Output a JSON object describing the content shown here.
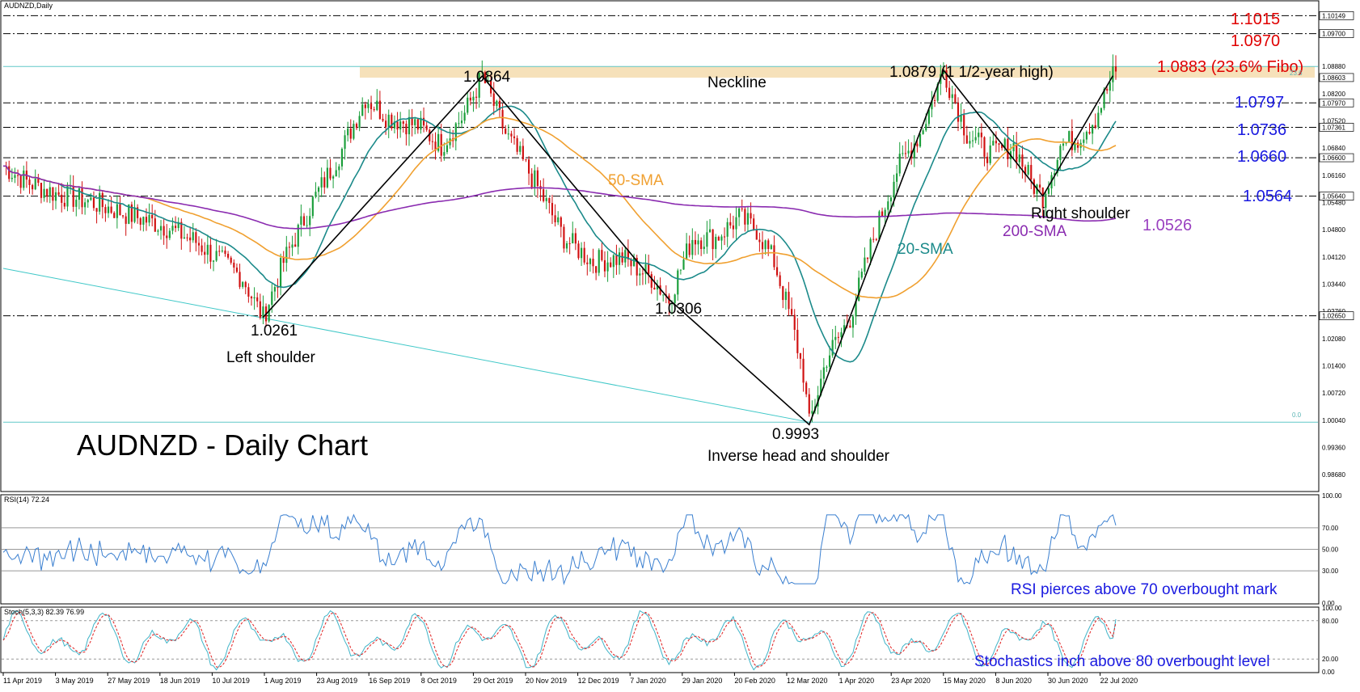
{
  "header": {
    "symbol_label": "AUDNZD,Daily",
    "rsi_label": "RSI(14) 72.24",
    "stoch_label": "Stoch(5,3,3) 82.39 76.99"
  },
  "colors": {
    "background": "#ffffff",
    "bull_candle": "#1a9e3a",
    "bear_candle": "#d01010",
    "sma20": "#1b8a8a",
    "sma50": "#f0a030",
    "sma200": "#8a2bb0",
    "neckline_zone": "#f5deb3",
    "resistance_text": "#e00000",
    "support_text": "#1a1ae0",
    "trendline": "#40c8c8",
    "indicator_line": "#3a7fd0",
    "stoch_signal": "#e02020"
  },
  "chart_data": [
    {
      "type": "candlestick",
      "title": "AUDNZD - Daily Chart",
      "symbol": "AUDNZD",
      "timeframe": "Daily",
      "x_tick_labels": [
        "11 Apr 2019",
        "3 May 2019",
        "27 May 2019",
        "18 Jun 2019",
        "10 Jul 2019",
        "1 Aug 2019",
        "23 Aug 2019",
        "16 Sep 2019",
        "8 Oct 2019",
        "29 Oct 2019",
        "20 Nov 2019",
        "12 Dec 2019",
        "7 Jan 2020",
        "29 Jan 2020",
        "20 Feb 2020",
        "12 Mar 2020",
        "1 Apr 2020",
        "23 Apr 2020",
        "15 May 2020",
        "8 Jun 2020",
        "30 Jun 2020",
        "22 Jul 2020"
      ],
      "y_tick_labels": [
        "1.10149",
        "1.09700",
        "1.08880",
        "1.08603",
        "1.08200",
        "1.07970",
        "1.07520",
        "1.07361",
        "1.06840",
        "1.06600",
        "1.06160",
        "1.05640",
        "1.05480",
        "1.04800",
        "1.04120",
        "1.03440",
        "1.02760",
        "1.02650",
        "1.02080",
        "1.01400",
        "1.00720",
        "1.00040",
        "0.99360",
        "0.98680"
      ],
      "ylim": [
        0.9828,
        1.105
      ],
      "price_path": [
        [
          0,
          1.064
        ],
        [
          8,
          1.06
        ],
        [
          18,
          1.057
        ],
        [
          30,
          1.055
        ],
        [
          42,
          1.052
        ],
        [
          55,
          1.049
        ],
        [
          66,
          1.045
        ],
        [
          75,
          1.04
        ],
        [
          82,
          1.036
        ],
        [
          86,
          1.03
        ],
        [
          89,
          1.0261
        ],
        [
          96,
          1.04
        ],
        [
          106,
          1.055
        ],
        [
          116,
          1.068
        ],
        [
          124,
          1.081
        ],
        [
          132,
          1.076
        ],
        [
          142,
          1.074
        ],
        [
          150,
          1.069
        ],
        [
          158,
          1.077
        ],
        [
          164,
          1.0864
        ],
        [
          172,
          1.072
        ],
        [
          182,
          1.06
        ],
        [
          192,
          1.046
        ],
        [
          202,
          1.04
        ],
        [
          212,
          1.041
        ],
        [
          222,
          1.036
        ],
        [
          228,
          1.0306
        ],
        [
          236,
          1.046
        ],
        [
          244,
          1.046
        ],
        [
          252,
          1.051
        ],
        [
          258,
          1.048
        ],
        [
          264,
          1.04
        ],
        [
          270,
          1.025
        ],
        [
          274,
          1.012
        ],
        [
          276,
          0.9993
        ],
        [
          282,
          1.016
        ],
        [
          290,
          1.026
        ],
        [
          298,
          1.046
        ],
        [
          306,
          1.063
        ],
        [
          314,
          1.072
        ],
        [
          322,
          1.0879
        ],
        [
          330,
          1.072
        ],
        [
          338,
          1.067
        ],
        [
          346,
          1.069
        ],
        [
          352,
          1.06
        ],
        [
          356,
          1.0564
        ],
        [
          362,
          1.069
        ],
        [
          368,
          1.071
        ],
        [
          374,
          1.076
        ],
        [
          380,
          1.0865
        ]
      ],
      "moving_averages": [
        {
          "name": "20-SMA",
          "label": "20-SMA"
        },
        {
          "name": "50-SMA",
          "label": "50-SMA"
        },
        {
          "name": "200-SMA",
          "label": "200-SMA"
        }
      ],
      "horizontal_levels": [
        1.1015,
        1.097,
        1.0797,
        1.0736,
        1.066,
        1.0564,
        1.0265
      ],
      "neckline_zone": [
        1.086,
        1.0888
      ],
      "annotations": {
        "resistance_1": "1.1015",
        "resistance_2": "1.0970",
        "fibo": "1.0883 (23.6% Fibo)",
        "support_1": "1.0797",
        "support_2": "1.0736",
        "support_3": "1.0660",
        "support_4": "1.0564",
        "sma200_value": "1.0526",
        "head_high_left": "1.0864",
        "high_right": "1.0879 (1 1/2-year high)",
        "neckline": "Neckline",
        "left_shoulder_value": "1.0261",
        "left_shoulder": "Left shoulder",
        "low_mid": "1.0306",
        "head_value": "0.9993",
        "pattern": "Inverse head and shoulder",
        "right_shoulder": "Right shoulder",
        "sma50": "50-SMA",
        "sma20": "20-SMA",
        "sma200": "200-SMA",
        "fibo_top_tiny": "23.6",
        "fibo_bottom_tiny": "0.0"
      }
    },
    {
      "type": "line",
      "title": "RSI(14) 72.24",
      "ylim": [
        0,
        100
      ],
      "y_tick_labels": [
        "100.00",
        "70.00",
        "50.00",
        "30.00",
        "0.00"
      ],
      "levels": [
        70,
        50,
        30
      ],
      "last_value": 72.24,
      "annotation": "RSI pierces above 70 overbought mark"
    },
    {
      "type": "line",
      "title": "Stoch(5,3,3) 82.39 76.99",
      "ylim": [
        0,
        100
      ],
      "y_tick_labels": [
        "100.00",
        "80.00",
        "20.00",
        "0.00"
      ],
      "levels": [
        80,
        20
      ],
      "last_values": [
        82.39,
        76.99
      ],
      "annotation": "Stochastics inch above 80 overbought level"
    }
  ]
}
